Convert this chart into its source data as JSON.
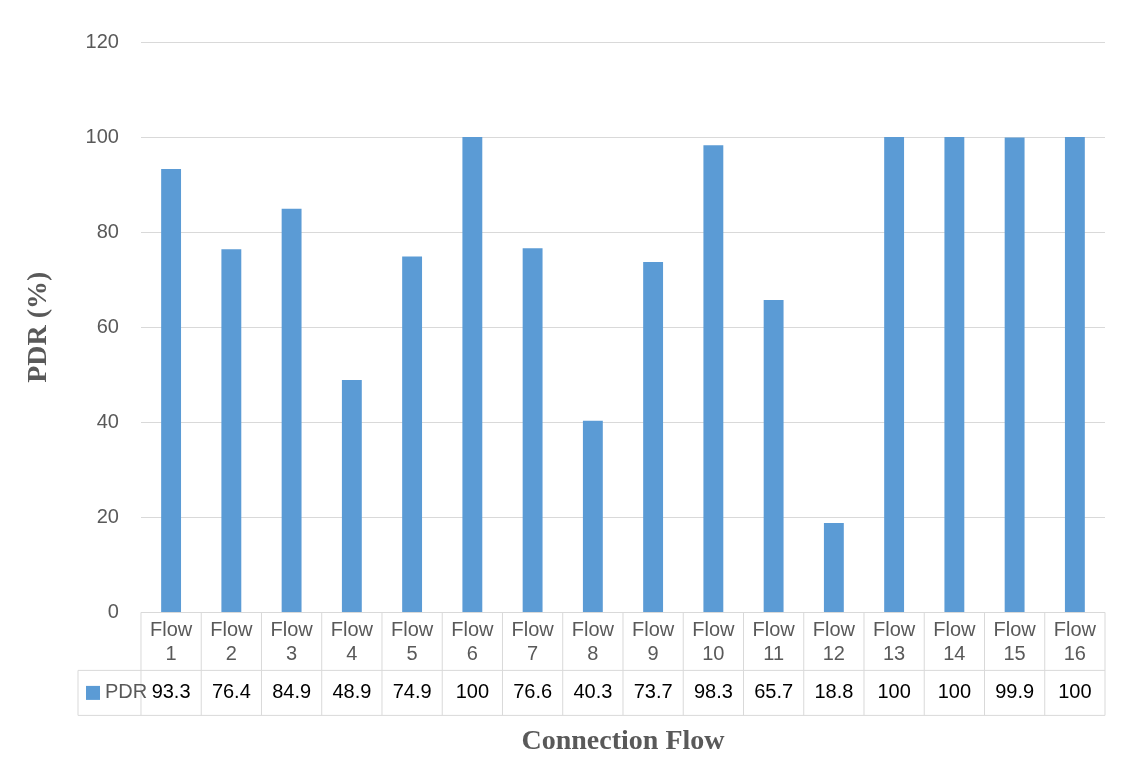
{
  "chart_data": {
    "type": "bar",
    "xlabel": "Connection Flow",
    "ylabel": "PDR (%)",
    "categories": [
      "Flow 1",
      "Flow 2",
      "Flow 3",
      "Flow 4",
      "Flow 5",
      "Flow 6",
      "Flow 7",
      "Flow 8",
      "Flow 9",
      "Flow 10",
      "Flow 11",
      "Flow 12",
      "Flow 13",
      "Flow 14",
      "Flow 15",
      "Flow 16"
    ],
    "series": [
      {
        "name": "PDR",
        "color": "#5b9bd5",
        "values": [
          93.3,
          76.4,
          84.9,
          48.9,
          74.9,
          100,
          76.6,
          40.3,
          73.7,
          98.3,
          65.7,
          18.8,
          100,
          100,
          99.9,
          100
        ]
      }
    ],
    "ylim": [
      0,
      120
    ],
    "yticks": [
      0,
      20,
      40,
      60,
      80,
      100,
      120
    ],
    "grid": "y",
    "legend": "bottom",
    "data_labels": true
  }
}
